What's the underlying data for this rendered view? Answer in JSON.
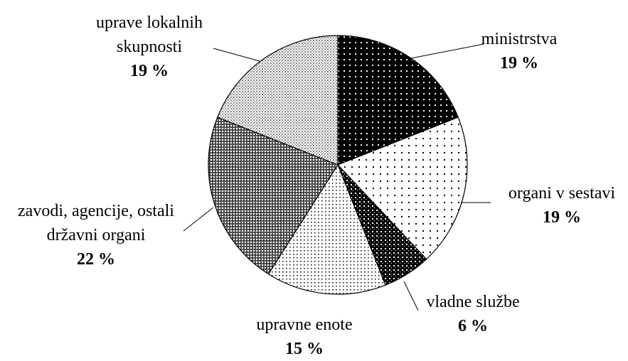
{
  "chart_data": {
    "type": "pie",
    "categories": [
      "ministrstva",
      "organi v sestavi",
      "vladne službe",
      "upravne enote",
      "zavodi, agencije, ostali državni organi",
      "uprave lokalnih skupnosti"
    ],
    "values": [
      19,
      19,
      6,
      15,
      22,
      19
    ],
    "value_labels": [
      "19 %",
      "19 %",
      "6 %",
      "15 %",
      "22 %",
      "19 %"
    ]
  }
}
